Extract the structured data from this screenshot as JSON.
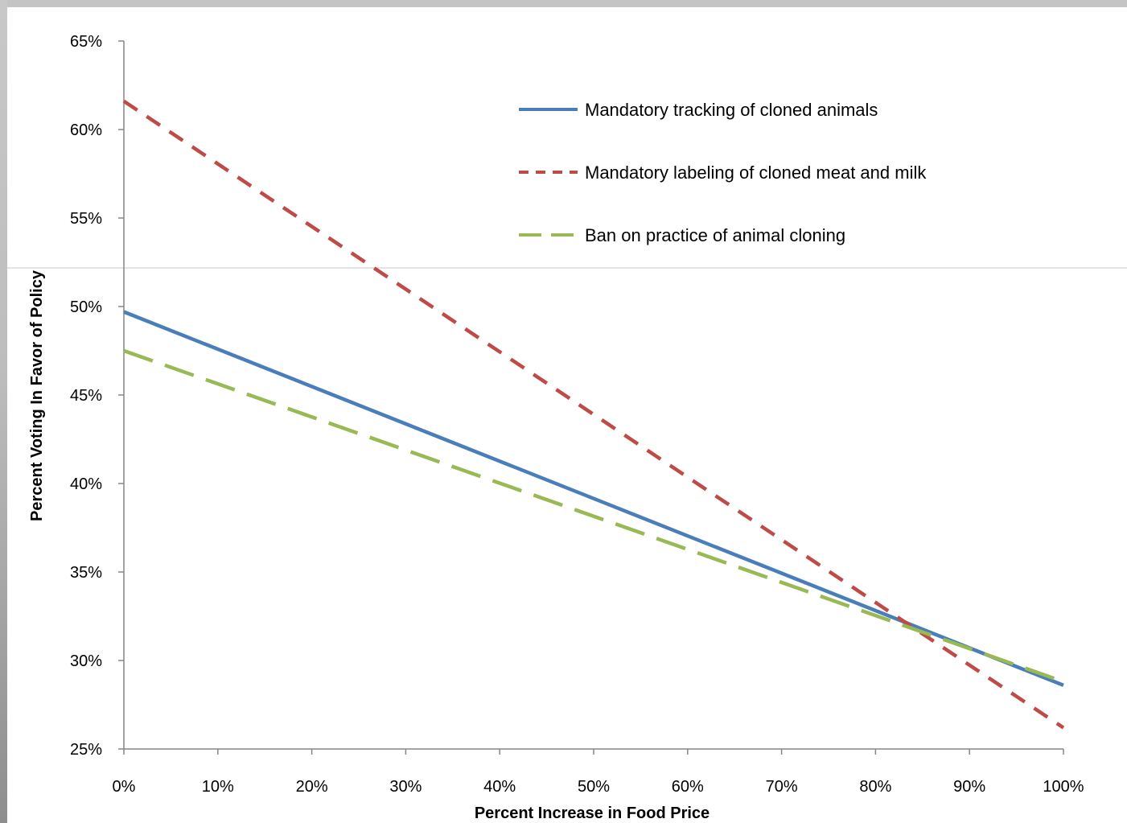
{
  "chart_data": {
    "type": "line",
    "xlabel": "Percent Increase in Food Price",
    "ylabel": "Percent Voting In Favor of Policy",
    "x": [
      0,
      100
    ],
    "xlim": [
      0,
      100
    ],
    "ylim": [
      25,
      65
    ],
    "x_ticks": [
      "0%",
      "10%",
      "20%",
      "30%",
      "40%",
      "50%",
      "60%",
      "70%",
      "80%",
      "90%",
      "100%"
    ],
    "y_ticks": [
      "25%",
      "30%",
      "35%",
      "40%",
      "45%",
      "50%",
      "55%",
      "60%",
      "65%"
    ],
    "grid": false,
    "legend_position": "top-right",
    "series": [
      {
        "name": "Mandatory tracking of cloned animals",
        "values": [
          49.7,
          28.6
        ],
        "color": "#4a7ebb",
        "dash": "solid"
      },
      {
        "name": "Mandatory labeling of cloned meat and milk",
        "values": [
          61.6,
          26.2
        ],
        "color": "#be4b48",
        "dash": "short-dash"
      },
      {
        "name": "Ban on practice of animal cloning",
        "values": [
          47.5,
          28.8
        ],
        "color": "#98b954",
        "dash": "long-dash"
      }
    ]
  }
}
